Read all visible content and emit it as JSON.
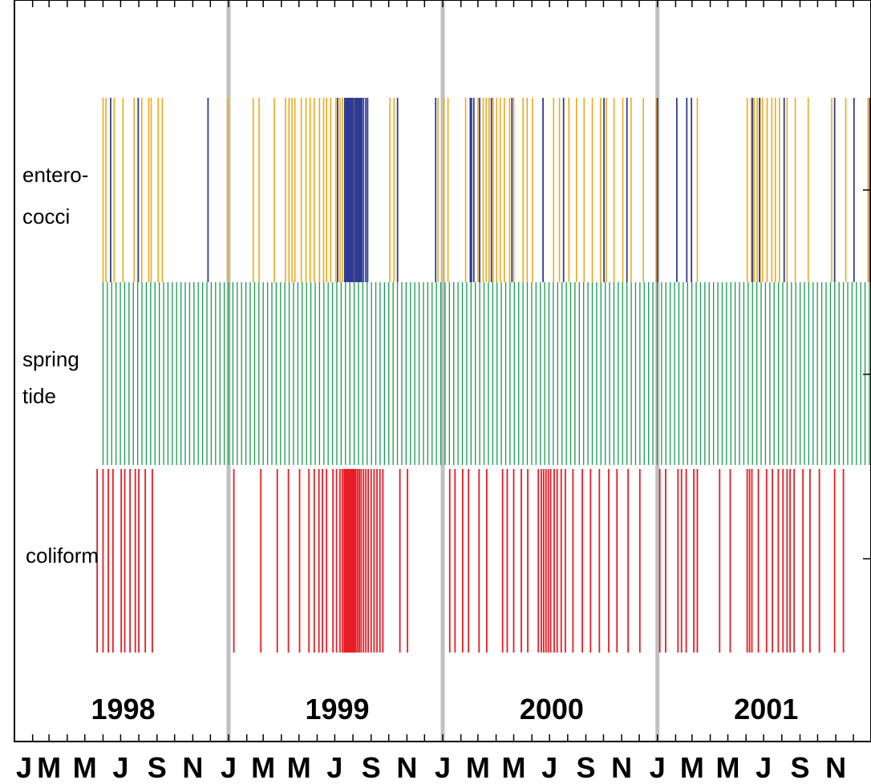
{
  "chart_data": {
    "type": "event-raster",
    "x_start": "1998-01-01",
    "x_end": "2001-12-31",
    "month_tick_labels": [
      "J",
      "M",
      "M",
      "J",
      "S",
      "N",
      "J",
      "M",
      "M",
      "J",
      "S",
      "N",
      "J",
      "M",
      "M",
      "J",
      "S",
      "N",
      "J",
      "M",
      "M",
      "J",
      "S",
      "N"
    ],
    "year_labels": [
      {
        "year": "1998"
      },
      {
        "year": "1999"
      },
      {
        "year": "2000"
      },
      {
        "year": "2001"
      }
    ],
    "year_boundaries": [
      "1999-01-01",
      "2000-01-01",
      "2001-01-01"
    ],
    "rows": [
      {
        "key": "enterococci",
        "label_lines": [
          "entero-",
          "cocci"
        ]
      },
      {
        "key": "spring_tide",
        "label_lines": [
          "spring",
          "tide"
        ]
      },
      {
        "key": "coliform",
        "label_lines": [
          "coliform"
        ]
      }
    ],
    "colors": {
      "entero_orange": "#f0a818",
      "entero_blue": "#2c3c96",
      "spring_tide": "#1a9a50",
      "coliform": "#e81c24",
      "year_divider": "#c0c0c0"
    },
    "series": {
      "spring_tide": {
        "start": "1998-06-01",
        "end": "2001-12-31",
        "interval_days": 7.38
      },
      "enterococci_orange": [
        "1998-06-01",
        "1998-06-06",
        "1998-06-20",
        "1998-07-05",
        "1998-07-24",
        "1998-08-06",
        "1998-08-18",
        "1998-08-22",
        "1998-09-03",
        "1998-09-10",
        "1998-12-31",
        "1999-02-12",
        "1999-02-22",
        "1999-03-20",
        "1999-04-08",
        "1999-04-14",
        "1999-04-19",
        "1999-04-24",
        "1999-05-05",
        "1999-05-13",
        "1999-05-20",
        "1999-05-27",
        "1999-06-05",
        "1999-06-12",
        "1999-06-17",
        "1999-06-24",
        "1999-07-03",
        "1999-07-10",
        "1999-07-14",
        "1999-08-02",
        "1999-10-03",
        "1999-10-10",
        "1999-12-24",
        "2000-01-03",
        "2000-01-10",
        "2000-02-09",
        "2000-03-01",
        "2000-03-10",
        "2000-03-15",
        "2000-03-20",
        "2000-03-27",
        "2000-04-02",
        "2000-04-08",
        "2000-04-15",
        "2000-04-24",
        "2000-05-01",
        "2000-05-17",
        "2000-05-24",
        "2000-06-02",
        "2000-07-08",
        "2000-07-18",
        "2000-08-03",
        "2000-08-16",
        "2000-08-29",
        "2000-09-12",
        "2000-09-26",
        "2000-10-06",
        "2000-10-19",
        "2000-11-03",
        "2000-11-17",
        "2000-12-08",
        "2000-12-30",
        "2001-03-10",
        "2001-06-03",
        "2001-06-10",
        "2001-06-15",
        "2001-06-20",
        "2001-06-25",
        "2001-06-29",
        "2001-07-07",
        "2001-07-15",
        "2001-07-21",
        "2001-07-28",
        "2001-08-10",
        "2001-08-24",
        "2001-09-15",
        "2001-10-25",
        "2001-11-18",
        "2001-12-26"
      ],
      "enterococci_blue": [
        "1998-06-14",
        "1998-07-31",
        "1998-11-27",
        "1999-07-06",
        "1999-07-18",
        "1999-07-20",
        "1999-07-22",
        "1999-07-24",
        "1999-07-26",
        "1999-07-28",
        "1999-07-30",
        "1999-08-01",
        "1999-08-04",
        "1999-08-06",
        "1999-08-08",
        "1999-08-10",
        "1999-08-12",
        "1999-08-14",
        "1999-08-16",
        "1999-08-19",
        "1999-08-23",
        "1999-08-26",
        "1999-10-16",
        "1999-12-20",
        "2000-02-17",
        "2000-02-19",
        "2000-02-23",
        "2000-03-04",
        "2000-03-24",
        "2000-04-28",
        "2000-06-20",
        "2000-07-25",
        "2000-10-02",
        "2000-11-10",
        "2001-01-01",
        "2001-02-03",
        "2001-02-20",
        "2001-02-28",
        "2001-06-12",
        "2001-06-24",
        "2001-08-05",
        "2001-10-30",
        "2001-12-02",
        "2001-12-29"
      ],
      "coliform": [
        "1998-05-22",
        "1998-06-01",
        "1998-06-10",
        "1998-06-18",
        "1998-07-02",
        "1998-07-08",
        "1998-07-17",
        "1998-07-26",
        "1998-08-01",
        "1998-08-12",
        "1998-08-24",
        "1999-01-10",
        "1999-02-25",
        "1999-03-25",
        "1999-04-13",
        "1999-05-02",
        "1999-05-18",
        "1999-05-27",
        "1999-06-04",
        "1999-06-10",
        "1999-06-17",
        "1999-06-28",
        "1999-07-04",
        "1999-07-10",
        "1999-07-14",
        "1999-07-17",
        "1999-07-19",
        "1999-07-21",
        "1999-07-23",
        "1999-07-25",
        "1999-07-27",
        "1999-07-29",
        "1999-07-31",
        "1999-08-02",
        "1999-08-04",
        "1999-08-06",
        "1999-08-09",
        "1999-08-12",
        "1999-08-15",
        "1999-08-19",
        "1999-08-23",
        "1999-08-27",
        "1999-09-01",
        "1999-09-06",
        "1999-09-11",
        "1999-09-16",
        "1999-09-21",
        "1999-10-20",
        "1999-11-02",
        "2000-01-13",
        "2000-01-22",
        "2000-02-04",
        "2000-02-14",
        "2000-03-03",
        "2000-03-16",
        "2000-04-12",
        "2000-04-20",
        "2000-05-01",
        "2000-05-14",
        "2000-05-25",
        "2000-06-12",
        "2000-06-17",
        "2000-06-21",
        "2000-06-25",
        "2000-06-29",
        "2000-07-03",
        "2000-07-09",
        "2000-07-14",
        "2000-07-21",
        "2000-07-28",
        "2000-08-10",
        "2000-08-26",
        "2000-09-09",
        "2000-09-24",
        "2000-10-10",
        "2000-10-24",
        "2000-11-12",
        "2000-12-02",
        "2001-01-05",
        "2001-01-15",
        "2001-02-05",
        "2001-02-11",
        "2001-02-19",
        "2001-03-04",
        "2001-03-10",
        "2001-04-17",
        "2001-05-05",
        "2001-06-03",
        "2001-06-07",
        "2001-06-11",
        "2001-06-22",
        "2001-07-06",
        "2001-07-16",
        "2001-07-26",
        "2001-08-03",
        "2001-08-10",
        "2001-08-15",
        "2001-08-22",
        "2001-09-06",
        "2001-09-18",
        "2001-10-04",
        "2001-10-30",
        "2001-11-14"
      ]
    }
  }
}
